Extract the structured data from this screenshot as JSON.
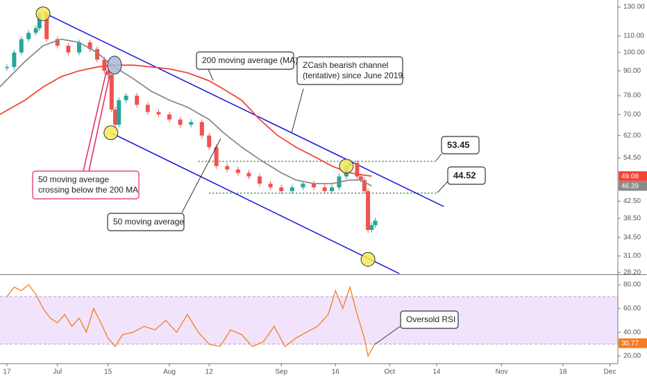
{
  "chart_data": [
    {
      "type": "candlestick",
      "log_scale": true,
      "grid": false,
      "xlim": [
        -1.92,
        169.2
      ],
      "ylim": [
        28.0,
        135.3
      ],
      "xticks": [
        {
          "value": 0,
          "label": "17"
        },
        {
          "value": 14,
          "label": "Jul"
        },
        {
          "value": 28,
          "label": "15"
        },
        {
          "value": 45,
          "label": "Aug"
        },
        {
          "value": 56,
          "label": "12"
        },
        {
          "value": 76,
          "label": "Sep"
        },
        {
          "value": 91,
          "label": "16"
        },
        {
          "value": 106,
          "label": "Oct"
        },
        {
          "value": 119,
          "label": "14"
        },
        {
          "value": 137,
          "label": "Nov"
        },
        {
          "value": 154,
          "label": "18"
        },
        {
          "value": 167,
          "label": "Dec"
        }
      ],
      "yticks": [
        {
          "value": 130,
          "label": "130.00"
        },
        {
          "value": 110,
          "label": "110.00"
        },
        {
          "value": 100,
          "label": "100.00"
        },
        {
          "value": 90,
          "label": "90.00"
        },
        {
          "value": 78,
          "label": "78.00"
        },
        {
          "value": 70,
          "label": "70.00"
        },
        {
          "value": 62,
          "label": "62.00"
        },
        {
          "value": 54.5,
          "label": "54.50"
        },
        {
          "value": 42.5,
          "label": "42.50"
        },
        {
          "value": 38.5,
          "label": "38.50"
        },
        {
          "value": 34.5,
          "label": "34.50"
        },
        {
          "value": 31,
          "label": "31.00"
        },
        {
          "value": 28.2,
          "label": "28.20"
        }
      ],
      "series": [
        {
          "up_color": "#26a69a",
          "down_color": "#ef5350",
          "x": [
            0,
            2,
            4,
            6,
            8,
            9,
            11,
            14,
            17,
            20,
            23,
            25,
            27,
            28,
            29,
            30,
            31,
            33,
            36,
            39,
            42,
            45,
            48,
            51,
            54,
            56,
            58,
            61,
            64,
            67,
            70,
            73,
            76,
            79,
            82,
            85,
            88,
            90,
            92,
            94,
            95,
            97,
            98,
            99,
            100,
            101,
            102
          ],
          "values": [
            92,
            100,
            108,
            112,
            115,
            125,
            108,
            104,
            100,
            106,
            102,
            96,
            90,
            88,
            72,
            66,
            76,
            78,
            74,
            71,
            70,
            68,
            66,
            67,
            62,
            58,
            52,
            51,
            50,
            49,
            47,
            46,
            45,
            46,
            47,
            46,
            45,
            46,
            49,
            52,
            53,
            49,
            48,
            45,
            36,
            37,
            38
          ]
        },
        {
          "color": "#8a8a8a",
          "tag": true,
          "x": [
            -2,
            5,
            10,
            15,
            20,
            25,
            29,
            35,
            40,
            45,
            50,
            56,
            60,
            65,
            70,
            76,
            80,
            85,
            90,
            95,
            98,
            101
          ],
          "values": [
            82,
            95,
            104,
            108,
            106,
            100,
            93,
            86,
            80,
            76,
            73,
            68,
            63,
            58,
            54,
            50,
            48,
            47,
            47,
            48,
            48,
            46.39
          ]
        },
        {
          "color": "#f44336",
          "tag": true,
          "x": [
            -2,
            5,
            10,
            15,
            20,
            25,
            30,
            35,
            40,
            45,
            50,
            56,
            60,
            65,
            70,
            75,
            80,
            85,
            90,
            95,
            98,
            101
          ],
          "values": [
            70,
            76,
            82,
            87,
            90,
            92,
            93,
            93,
            92,
            91,
            89,
            85,
            81,
            76,
            68,
            62,
            58,
            55,
            52,
            50,
            49.5,
            49.08
          ]
        }
      ],
      "channel_lines": [
        {
          "color": "#1010e0",
          "x": [
            10,
            121
          ],
          "y": [
            126,
            41.2
          ]
        },
        {
          "color": "#1010e0",
          "x": [
            28.8,
            108.7
          ],
          "y": [
            63,
            28.0
          ]
        }
      ],
      "levels": [
        {
          "value": 53.45,
          "x": [
            53,
            119
          ],
          "color": "#2e8b2e"
        },
        {
          "value": 44.52,
          "x": [
            56,
            119
          ],
          "color": "#2e8b2e"
        }
      ],
      "highlights": [
        {
          "x": 10,
          "y": 125,
          "color": "#f7e85a"
        },
        {
          "x": 28.8,
          "y": 63,
          "color": "#f7e85a"
        },
        {
          "x": 29.8,
          "y": 93,
          "color": "#a9b9d6"
        },
        {
          "x": 94,
          "y": 52,
          "color": "#f7e85a"
        },
        {
          "x": 100,
          "y": 30.4,
          "color": "#f7e85a"
        }
      ],
      "annotations": [
        {
          "lines": [
            "200 moving average (MA)"
          ]
        },
        {
          "lines": [
            "ZCash bearish channel",
            "(tentative) since June 2019."
          ]
        },
        {
          "lines": [
            "50 moving average",
            "crossing below the 200 MA"
          ]
        },
        {
          "lines": [
            "50 moving average"
          ]
        }
      ]
    },
    {
      "type": "line",
      "ylim": [
        15.3,
        87.6
      ],
      "band": [
        30,
        70
      ],
      "band_color": "#f1e3fb",
      "yticks": [
        {
          "value": 80,
          "label": "80.00"
        },
        {
          "value": 60,
          "label": "60.00"
        },
        {
          "value": 40,
          "label": "40.00"
        },
        {
          "value": 20,
          "label": "20.00"
        }
      ],
      "series": [
        {
          "color": "#f57c20",
          "tag": true,
          "x": [
            0,
            2,
            4,
            6,
            8,
            10,
            12,
            14,
            16,
            18,
            20,
            22,
            24,
            26,
            28,
            30,
            32,
            35,
            38,
            41,
            44,
            47,
            50,
            53,
            56,
            59,
            62,
            65,
            68,
            71,
            74,
            77,
            80,
            83,
            86,
            89,
            91,
            93,
            95,
            97,
            99,
            100,
            102
          ],
          "values": [
            70,
            78,
            75,
            80,
            72,
            60,
            52,
            48,
            55,
            45,
            52,
            40,
            60,
            48,
            35,
            28,
            38,
            40,
            45,
            42,
            50,
            40,
            55,
            40,
            30,
            28,
            42,
            38,
            28,
            32,
            45,
            28,
            35,
            40,
            45,
            55,
            75,
            60,
            78,
            55,
            35,
            20,
            30.77
          ]
        }
      ],
      "annotations": [
        {
          "lines": [
            "Oversold RSI"
          ]
        }
      ]
    }
  ]
}
